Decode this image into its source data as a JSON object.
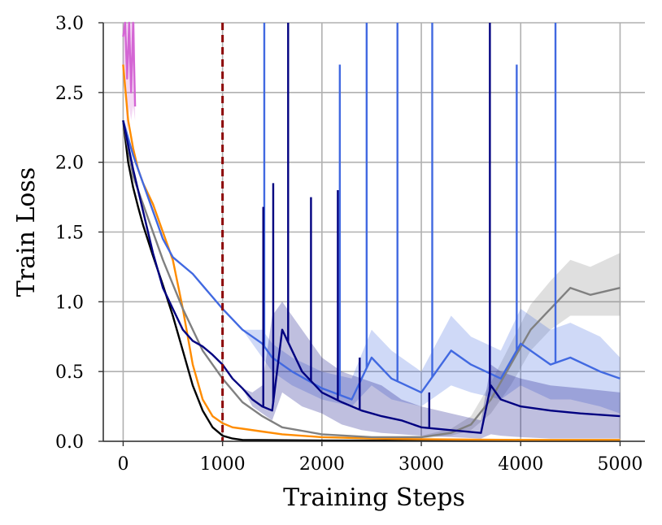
{
  "chart_data": {
    "type": "line",
    "title": "",
    "xlabel": "Training Steps",
    "ylabel": "Train Loss",
    "xlim": [
      -200,
      5250
    ],
    "ylim": [
      0.0,
      3.0
    ],
    "xticks": [
      0,
      1000,
      2000,
      3000,
      4000,
      5000
    ],
    "yticks": [
      0.0,
      0.5,
      1.0,
      1.5,
      2.0,
      2.5,
      3.0
    ],
    "xtick_labels": [
      "0",
      "1000",
      "2000",
      "3000",
      "4000",
      "5000"
    ],
    "ytick_labels": [
      "0.0",
      "0.5",
      "1.0",
      "1.5",
      "2.0",
      "2.5",
      "3.0"
    ],
    "grid": true,
    "vline": {
      "x": 1000,
      "color": "#8b0000",
      "style": "dashed"
    },
    "series": [
      {
        "name": "pink-diverged",
        "color": "#d466d4",
        "x": [
          0,
          20,
          40,
          60,
          80,
          100,
          120
        ],
        "y": [
          2.9,
          3.0,
          2.6,
          3.0,
          2.5,
          3.0,
          2.4
        ],
        "band_low": [
          2.6,
          2.5,
          2.2,
          2.4,
          2.3,
          2.4,
          2.3
        ],
        "band_high": [
          3.0,
          3.0,
          3.0,
          3.0,
          3.0,
          3.0,
          3.0
        ]
      },
      {
        "name": "black",
        "color": "#000000",
        "x": [
          0,
          50,
          100,
          150,
          200,
          300,
          400,
          500,
          600,
          700,
          800,
          900,
          1000,
          1100,
          1200,
          1500,
          2000,
          3000,
          4000,
          5000
        ],
        "y": [
          2.3,
          2.0,
          1.82,
          1.68,
          1.55,
          1.33,
          1.12,
          0.9,
          0.65,
          0.4,
          0.22,
          0.1,
          0.04,
          0.02,
          0.01,
          0.008,
          0.005,
          0.004,
          0.003,
          0.003
        ]
      },
      {
        "name": "orange",
        "color": "#ff8c00",
        "x": [
          0,
          50,
          100,
          150,
          200,
          300,
          400,
          500,
          600,
          700,
          800,
          900,
          1000,
          1100,
          1200,
          1400,
          1600,
          2000,
          2500,
          3000,
          4000,
          5000
        ],
        "y": [
          2.7,
          2.3,
          2.1,
          1.95,
          1.85,
          1.7,
          1.5,
          1.3,
          0.95,
          0.55,
          0.3,
          0.18,
          0.13,
          0.1,
          0.09,
          0.07,
          0.05,
          0.03,
          0.02,
          0.015,
          0.01,
          0.01
        ]
      },
      {
        "name": "gray",
        "color": "#808080",
        "x": [
          0,
          100,
          200,
          400,
          600,
          800,
          1000,
          1200,
          1400,
          1600,
          2000,
          2500,
          3000,
          3300,
          3500,
          3700,
          3900,
          4100,
          4300,
          4500,
          4700,
          5000
        ],
        "y": [
          2.3,
          1.9,
          1.7,
          1.3,
          0.95,
          0.65,
          0.45,
          0.28,
          0.18,
          0.1,
          0.05,
          0.03,
          0.03,
          0.06,
          0.12,
          0.3,
          0.55,
          0.8,
          0.95,
          1.1,
          1.05,
          1.1
        ],
        "band_low": [
          2.3,
          1.9,
          1.7,
          1.3,
          0.95,
          0.65,
          0.45,
          0.28,
          0.18,
          0.1,
          0.05,
          0.03,
          0.02,
          0.04,
          0.08,
          0.2,
          0.4,
          0.65,
          0.8,
          0.9,
          0.9,
          0.9
        ],
        "band_high": [
          2.3,
          1.9,
          1.7,
          1.3,
          0.95,
          0.65,
          0.45,
          0.28,
          0.18,
          0.1,
          0.05,
          0.03,
          0.04,
          0.09,
          0.18,
          0.42,
          0.7,
          0.98,
          1.15,
          1.3,
          1.25,
          1.35
        ]
      },
      {
        "name": "blue",
        "color": "#4169e1",
        "x": [
          0,
          100,
          200,
          300,
          400,
          500,
          700,
          1000,
          1200,
          1400,
          1500,
          1700,
          2000,
          2300,
          2500,
          2700,
          3000,
          3300,
          3500,
          3800,
          4000,
          4300,
          4500,
          4800,
          5000
        ],
        "y": [
          2.3,
          2.05,
          1.85,
          1.65,
          1.45,
          1.32,
          1.2,
          0.95,
          0.8,
          0.7,
          0.6,
          0.5,
          0.38,
          0.3,
          0.6,
          0.45,
          0.35,
          0.65,
          0.55,
          0.45,
          0.7,
          0.55,
          0.6,
          0.5,
          0.45
        ],
        "band_low": [
          2.3,
          2.05,
          1.85,
          1.65,
          1.45,
          1.32,
          1.2,
          0.95,
          0.8,
          0.6,
          0.5,
          0.4,
          0.3,
          0.25,
          0.4,
          0.3,
          0.25,
          0.4,
          0.35,
          0.3,
          0.4,
          0.3,
          0.3,
          0.25,
          0.2
        ],
        "band_high": [
          2.3,
          2.05,
          1.85,
          1.65,
          1.45,
          1.32,
          1.2,
          0.95,
          0.8,
          0.8,
          0.7,
          0.6,
          0.5,
          0.45,
          0.8,
          0.65,
          0.5,
          0.9,
          0.75,
          0.65,
          0.95,
          0.8,
          0.85,
          0.75,
          0.6
        ],
        "spikes": [
          {
            "x": 1420,
            "y": 3.0
          },
          {
            "x": 2180,
            "y": 2.7
          },
          {
            "x": 2450,
            "y": 3.0
          },
          {
            "x": 2760,
            "y": 3.0
          },
          {
            "x": 3110,
            "y": 3.0
          },
          {
            "x": 3960,
            "y": 2.7
          },
          {
            "x": 4350,
            "y": 3.0
          }
        ]
      },
      {
        "name": "navy",
        "color": "#000080",
        "x": [
          0,
          100,
          200,
          300,
          400,
          500,
          600,
          700,
          800,
          900,
          1000,
          1100,
          1200,
          1300,
          1400,
          1500,
          1600,
          1800,
          2000,
          2200,
          2400,
          2600,
          2800,
          3000,
          3300,
          3600,
          3700,
          3800,
          4000,
          4300,
          4600,
          5000
        ],
        "y": [
          2.3,
          1.95,
          1.65,
          1.35,
          1.1,
          0.95,
          0.8,
          0.72,
          0.68,
          0.62,
          0.55,
          0.45,
          0.38,
          0.3,
          0.25,
          0.22,
          0.8,
          0.5,
          0.35,
          0.28,
          0.22,
          0.18,
          0.15,
          0.1,
          0.08,
          0.06,
          0.4,
          0.3,
          0.25,
          0.22,
          0.2,
          0.18
        ],
        "band_low": [
          2.3,
          1.95,
          1.65,
          1.35,
          1.1,
          0.95,
          0.8,
          0.72,
          0.68,
          0.62,
          0.55,
          0.45,
          0.38,
          0.25,
          0.2,
          0.15,
          0.35,
          0.25,
          0.2,
          0.12,
          0.08,
          0.06,
          0.05,
          0.04,
          0.03,
          0.02,
          0.05,
          0.04,
          0.03,
          0.02,
          0.02,
          0.02
        ],
        "band_high": [
          2.3,
          1.95,
          1.65,
          1.35,
          1.1,
          0.95,
          0.8,
          0.72,
          0.68,
          0.62,
          0.55,
          0.45,
          0.38,
          0.35,
          0.4,
          0.9,
          1.0,
          0.8,
          0.6,
          0.5,
          0.45,
          0.4,
          0.3,
          0.25,
          0.2,
          0.15,
          0.55,
          0.5,
          0.45,
          0.4,
          0.38,
          0.35
        ],
        "spikes": [
          {
            "x": 1410,
            "y": 1.68
          },
          {
            "x": 1510,
            "y": 1.85
          },
          {
            "x": 1660,
            "y": 3.0
          },
          {
            "x": 1890,
            "y": 1.75
          },
          {
            "x": 2160,
            "y": 1.8
          },
          {
            "x": 2380,
            "y": 0.6
          },
          {
            "x": 3080,
            "y": 0.35
          },
          {
            "x": 3690,
            "y": 3.0
          }
        ]
      }
    ]
  }
}
